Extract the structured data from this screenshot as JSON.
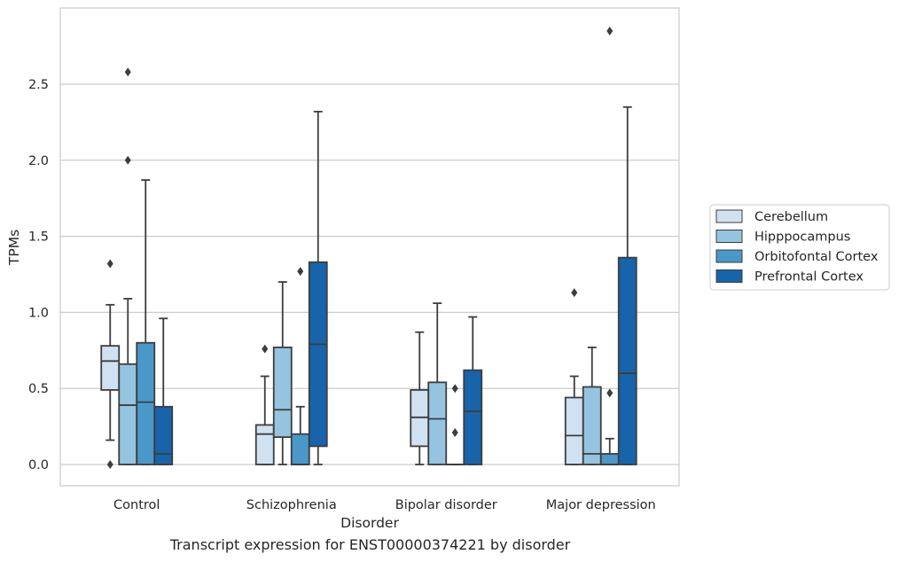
{
  "caption": "Transcript expression for ENST00000374221 by disorder",
  "chart_data": {
    "type": "box",
    "title": "",
    "xlabel": "Disorder",
    "ylabel": "TPMs",
    "ylim": [
      -0.14,
      3.0
    ],
    "yticks": [
      0.0,
      0.5,
      1.0,
      1.5,
      2.0,
      2.5
    ],
    "ytick_labels": [
      "0.0",
      "0.5",
      "1.0",
      "1.5",
      "2.0",
      "2.5"
    ],
    "grid": true,
    "legend_position": "right",
    "categories": [
      "Control",
      "Schizophrenia",
      "Bipolar disorder",
      "Major depression"
    ],
    "series": [
      {
        "name": "Cerebellum",
        "color": "#d0e1f2",
        "boxes": [
          {
            "whislo": 0.16,
            "q1": 0.49,
            "med": 0.68,
            "q3": 0.78,
            "whishi": 1.05,
            "fliers": [
              1.32,
              0.0
            ]
          },
          {
            "whislo": 0.0,
            "q1": 0.0,
            "med": 0.2,
            "q3": 0.26,
            "whishi": 0.58,
            "fliers": [
              0.76
            ]
          },
          {
            "whislo": 0.0,
            "q1": 0.12,
            "med": 0.31,
            "q3": 0.49,
            "whishi": 0.87,
            "fliers": []
          },
          {
            "whislo": 0.0,
            "q1": 0.0,
            "med": 0.19,
            "q3": 0.44,
            "whishi": 0.58,
            "fliers": [
              1.13
            ]
          }
        ]
      },
      {
        "name": "Hipppocampus",
        "color": "#94c4df",
        "boxes": [
          {
            "whislo": 0.0,
            "q1": 0.0,
            "med": 0.39,
            "q3": 0.66,
            "whishi": 1.09,
            "fliers": [
              2.58,
              2.0
            ]
          },
          {
            "whislo": 0.0,
            "q1": 0.18,
            "med": 0.36,
            "q3": 0.77,
            "whishi": 1.2,
            "fliers": []
          },
          {
            "whislo": 0.0,
            "q1": 0.0,
            "med": 0.3,
            "q3": 0.54,
            "whishi": 1.06,
            "fliers": []
          },
          {
            "whislo": 0.0,
            "q1": 0.0,
            "med": 0.07,
            "q3": 0.51,
            "whishi": 0.77,
            "fliers": []
          }
        ]
      },
      {
        "name": "Orbitofontal Cortex",
        "color": "#4a98c9",
        "boxes": [
          {
            "whislo": 0.0,
            "q1": 0.0,
            "med": 0.41,
            "q3": 0.8,
            "whishi": 1.87,
            "fliers": []
          },
          {
            "whislo": 0.0,
            "q1": 0.0,
            "med": 0.0,
            "q3": 0.2,
            "whishi": 0.38,
            "fliers": [
              1.27
            ]
          },
          {
            "whislo": 0.0,
            "q1": 0.0,
            "med": 0.0,
            "q3": 0.0,
            "whishi": 0.0,
            "fliers": [
              0.5,
              0.21
            ]
          },
          {
            "whislo": 0.0,
            "q1": 0.0,
            "med": 0.0,
            "q3": 0.07,
            "whishi": 0.17,
            "fliers": [
              2.85,
              0.47
            ]
          }
        ]
      },
      {
        "name": "Prefrontal Cortex",
        "color": "#1764ab",
        "boxes": [
          {
            "whislo": 0.0,
            "q1": 0.0,
            "med": 0.07,
            "q3": 0.38,
            "whishi": 0.96,
            "fliers": []
          },
          {
            "whislo": 0.0,
            "q1": 0.12,
            "med": 0.79,
            "q3": 1.33,
            "whishi": 2.32,
            "fliers": []
          },
          {
            "whislo": 0.0,
            "q1": 0.0,
            "med": 0.35,
            "q3": 0.62,
            "whishi": 0.97,
            "fliers": []
          },
          {
            "whislo": 0.0,
            "q1": 0.0,
            "med": 0.6,
            "q3": 1.36,
            "whishi": 2.35,
            "fliers": []
          }
        ]
      }
    ]
  }
}
